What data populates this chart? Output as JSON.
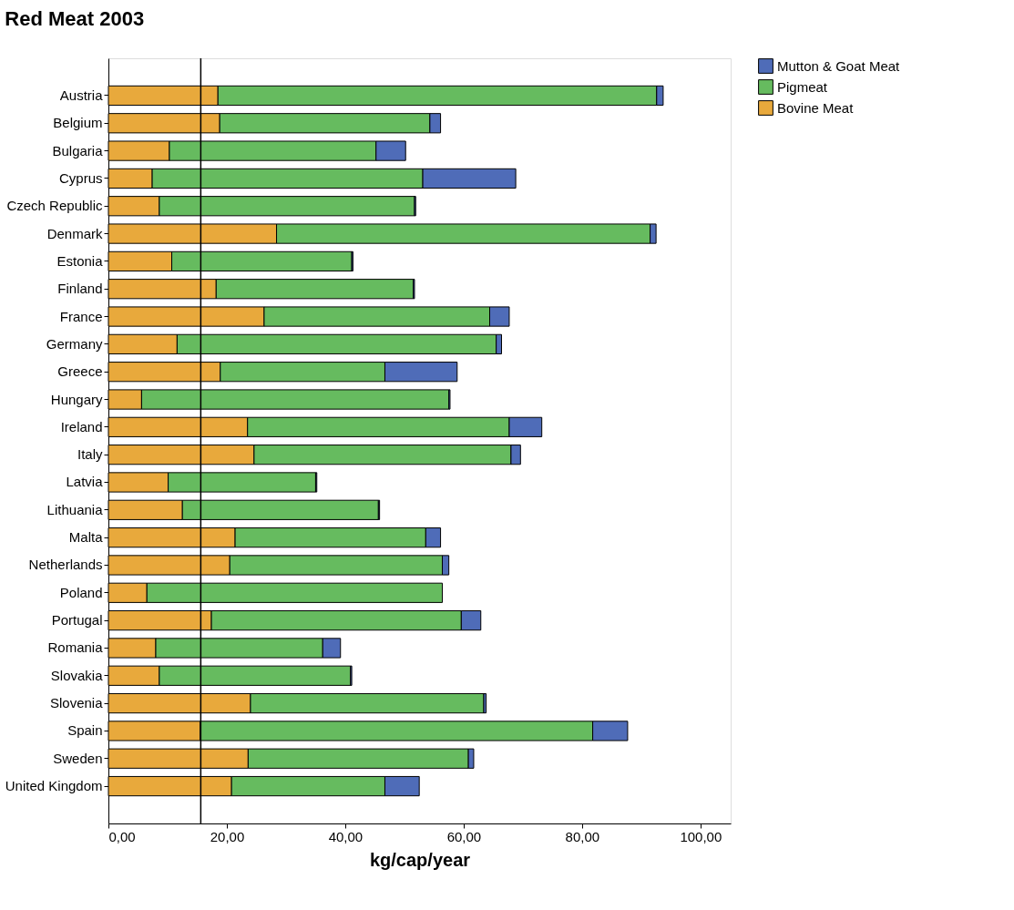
{
  "chart_data": {
    "type": "bar",
    "orientation": "horizontal",
    "stacked": true,
    "title": "Red Meat 2003",
    "xlabel": "kg/cap/year",
    "categories": [
      "Austria",
      "Belgium",
      "Bulgaria",
      "Cyprus",
      "Czech Republic",
      "Denmark",
      "Estonia",
      "Finland",
      "France",
      "Germany",
      "Greece",
      "Hungary",
      "Ireland",
      "Italy",
      "Latvia",
      "Lithuania",
      "Malta",
      "Netherlands",
      "Poland",
      "Portugal",
      "Romania",
      "Slovakia",
      "Slovenia",
      "Spain",
      "Sweden",
      "United Kingdom"
    ],
    "series": [
      {
        "name": "Bovine Meat",
        "color": "#e8a93c",
        "values": [
          18.5,
          18.8,
          10.3,
          7.4,
          8.6,
          28.4,
          10.7,
          18.2,
          26.3,
          11.6,
          18.9,
          5.6,
          23.5,
          24.6,
          10.1,
          12.5,
          21.4,
          20.5,
          6.5,
          17.4,
          8.0,
          8.6,
          24.0,
          15.5,
          23.6,
          20.8
        ]
      },
      {
        "name": "Pigmeat",
        "color": "#66bb5f",
        "values": [
          74.1,
          35.5,
          34.9,
          45.7,
          43.1,
          63.1,
          30.4,
          33.3,
          38.1,
          53.9,
          27.8,
          51.9,
          44.2,
          43.4,
          24.9,
          33.1,
          32.2,
          35.9,
          49.9,
          42.2,
          28.2,
          32.3,
          39.4,
          66.3,
          37.2,
          25.9
        ]
      },
      {
        "name": "Mutton & Goat Meat",
        "color": "#4f6cb8",
        "values": [
          1.1,
          1.8,
          5.0,
          15.7,
          0.2,
          1.0,
          0.2,
          0.2,
          3.3,
          0.9,
          12.2,
          0.2,
          5.5,
          1.6,
          0.2,
          0.2,
          2.5,
          1.1,
          null,
          3.3,
          3.0,
          0.2,
          0.4,
          5.9,
          0.9,
          5.8
        ]
      }
    ],
    "xlim": [
      0,
      105.1
    ],
    "xticks": [
      {
        "value": 0,
        "label": "0,00"
      },
      {
        "value": 20,
        "label": "20,00"
      },
      {
        "value": 40,
        "label": "40,00"
      },
      {
        "value": 60,
        "label": "60,00"
      },
      {
        "value": 80,
        "label": "80,00"
      },
      {
        "value": 100,
        "label": "100,00"
      }
    ],
    "ref_lines": [
      {
        "axis": "x",
        "value": 15.6,
        "color": "#000000"
      }
    ],
    "grid": false,
    "legend": "top right"
  }
}
